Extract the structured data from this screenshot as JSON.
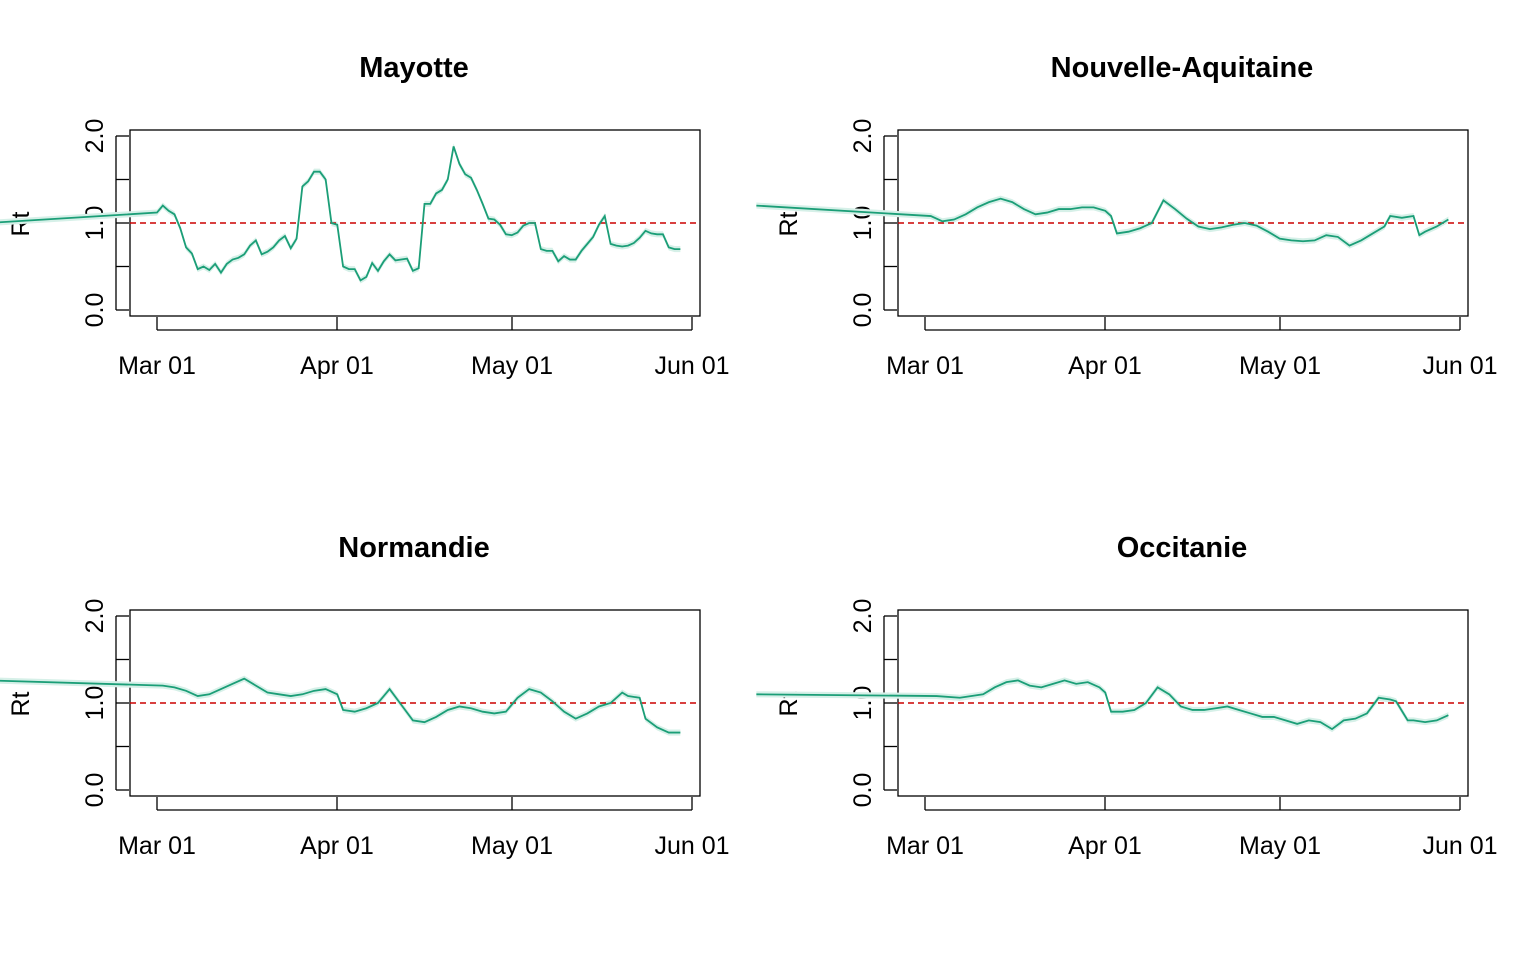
{
  "chart_data": [
    {
      "type": "line",
      "title": "Mayotte",
      "xlabel": "",
      "ylabel": "Rt",
      "ylim": [
        0,
        2
      ],
      "yticks": [
        "0.0",
        "1.0",
        "2.0"
      ],
      "xticks": [
        "Mar 01",
        "Apr 01",
        "May 01",
        "Jun 01"
      ],
      "reference_line": {
        "y": 1.0,
        "color": "#cc0000",
        "style": "dashed"
      },
      "series_color": "#1b9e77",
      "band_color": "#d6f0e8",
      "series": [
        {
          "x": [
            "02-28",
            "03-01",
            "03-02",
            "03-03",
            "03-04",
            "03-05",
            "03-06",
            "03-07",
            "03-08",
            "03-09",
            "03-10",
            "03-11",
            "03-12",
            "03-13",
            "03-14",
            "03-15",
            "03-16",
            "03-17",
            "03-18",
            "03-19",
            "03-20",
            "03-21",
            "03-22",
            "03-23",
            "03-24",
            "03-25",
            "03-26",
            "03-27",
            "03-28",
            "03-29",
            "03-30",
            "03-31",
            "04-01",
            "04-02",
            "04-03",
            "04-04",
            "04-05",
            "04-06",
            "04-07",
            "04-08",
            "04-09",
            "04-10",
            "04-11",
            "04-12",
            "04-13",
            "04-14",
            "04-15",
            "04-16",
            "04-17",
            "04-18",
            "04-19",
            "04-20",
            "04-21",
            "04-22",
            "04-23",
            "04-24",
            "04-25",
            "04-26",
            "04-27",
            "04-28",
            "04-29",
            "04-30",
            "05-01",
            "05-02",
            "05-03",
            "05-04",
            "05-05",
            "05-06",
            "05-07",
            "05-08",
            "05-09",
            "05-10",
            "05-11",
            "05-12",
            "05-13",
            "05-14",
            "05-15",
            "05-16",
            "05-17",
            "05-18",
            "05-19",
            "05-20",
            "05-21",
            "05-22",
            "05-23",
            "05-24",
            "05-25",
            "05-26",
            "05-27",
            "05-28",
            "05-29",
            "05-30"
          ],
          "y": [
            1.0,
            1.12,
            1.2,
            1.14,
            1.1,
            0.94,
            0.72,
            0.65,
            0.47,
            0.5,
            0.46,
            0.53,
            0.43,
            0.53,
            0.58,
            0.6,
            0.64,
            0.74,
            0.8,
            0.64,
            0.67,
            0.72,
            0.8,
            0.85,
            0.71,
            0.82,
            1.42,
            1.48,
            1.59,
            1.59,
            1.5,
            1.0,
            0.98,
            0.5,
            0.47,
            0.47,
            0.34,
            0.38,
            0.54,
            0.45,
            0.56,
            0.64,
            0.57,
            0.58,
            0.59,
            0.45,
            0.48,
            1.22,
            1.22,
            1.34,
            1.38,
            1.5,
            1.88,
            1.68,
            1.56,
            1.52,
            1.38,
            1.22,
            1.05,
            1.04,
            0.98,
            0.87,
            0.86,
            0.89,
            0.97,
            1.0,
            1.0,
            0.7,
            0.68,
            0.68,
            0.56,
            0.62,
            0.58,
            0.58,
            0.68,
            0.76,
            0.84,
            0.98,
            1.08,
            0.76,
            0.74,
            0.73,
            0.74,
            0.77,
            0.83,
            0.91,
            0.88,
            0.87,
            0.87,
            0.72,
            0.7,
            0.7
          ]
        }
      ]
    },
    {
      "type": "line",
      "title": "Nouvelle-Aquitaine",
      "xlabel": "",
      "ylabel": "Rt",
      "ylim": [
        0,
        2
      ],
      "yticks": [
        "0.0",
        "1.0",
        "2.0"
      ],
      "xticks": [
        "Mar 01",
        "Apr 01",
        "May 01",
        "Jun 01"
      ],
      "reference_line": {
        "y": 1.0,
        "color": "#cc0000",
        "style": "dashed"
      },
      "series_color": "#1b9e77",
      "band_color": "#d6f0e8",
      "series": [
        {
          "x": [
            "02-28",
            "03-02",
            "03-04",
            "03-06",
            "03-08",
            "03-10",
            "03-12",
            "03-14",
            "03-16",
            "03-18",
            "03-20",
            "03-22",
            "03-24",
            "03-26",
            "03-28",
            "03-30",
            "04-01",
            "04-02",
            "04-03",
            "04-05",
            "04-07",
            "04-09",
            "04-11",
            "04-13",
            "04-15",
            "04-17",
            "04-19",
            "04-21",
            "04-23",
            "04-25",
            "04-27",
            "04-29",
            "05-01",
            "05-03",
            "05-05",
            "05-07",
            "05-09",
            "05-11",
            "05-13",
            "05-15",
            "05-17",
            "05-19",
            "05-20",
            "05-22",
            "05-24",
            "05-25",
            "05-26",
            "05-28",
            "05-30"
          ],
          "y": [
            1.2,
            1.08,
            1.02,
            1.04,
            1.1,
            1.18,
            1.24,
            1.28,
            1.24,
            1.16,
            1.1,
            1.12,
            1.16,
            1.16,
            1.18,
            1.18,
            1.14,
            1.08,
            0.88,
            0.9,
            0.94,
            1.0,
            1.26,
            1.16,
            1.05,
            0.96,
            0.93,
            0.95,
            0.98,
            1.0,
            0.97,
            0.9,
            0.82,
            0.8,
            0.79,
            0.8,
            0.86,
            0.84,
            0.74,
            0.8,
            0.88,
            0.96,
            1.08,
            1.06,
            1.08,
            0.86,
            0.9,
            0.96,
            1.04
          ]
        }
      ]
    },
    {
      "type": "line",
      "title": "Normandie",
      "xlabel": "",
      "ylabel": "Rt",
      "ylim": [
        0,
        2
      ],
      "yticks": [
        "0.0",
        "1.0",
        "2.0"
      ],
      "xticks": [
        "Mar 01",
        "Apr 01",
        "May 01",
        "Jun 01"
      ],
      "reference_line": {
        "y": 1.0,
        "color": "#cc0000",
        "style": "dashed"
      },
      "series_color": "#1b9e77",
      "band_color": "#d6f0e8",
      "series": [
        {
          "x": [
            "02-28",
            "03-02",
            "03-04",
            "03-06",
            "03-08",
            "03-10",
            "03-12",
            "03-14",
            "03-16",
            "03-18",
            "03-20",
            "03-22",
            "03-24",
            "03-26",
            "03-28",
            "03-30",
            "04-01",
            "04-02",
            "04-04",
            "04-06",
            "04-08",
            "04-10",
            "04-12",
            "04-14",
            "04-16",
            "04-18",
            "04-20",
            "04-22",
            "04-24",
            "04-26",
            "04-28",
            "04-30",
            "05-02",
            "05-04",
            "05-06",
            "05-08",
            "05-10",
            "05-12",
            "05-14",
            "05-16",
            "05-18",
            "05-20",
            "05-21",
            "05-23",
            "05-24",
            "05-26",
            "05-28",
            "05-30"
          ],
          "y": [
            1.26,
            1.2,
            1.18,
            1.14,
            1.08,
            1.1,
            1.16,
            1.22,
            1.28,
            1.2,
            1.12,
            1.1,
            1.08,
            1.1,
            1.14,
            1.16,
            1.1,
            0.92,
            0.9,
            0.94,
            1.0,
            1.16,
            0.98,
            0.8,
            0.78,
            0.84,
            0.92,
            0.96,
            0.94,
            0.9,
            0.88,
            0.9,
            1.06,
            1.16,
            1.12,
            1.02,
            0.9,
            0.82,
            0.88,
            0.96,
            1.0,
            1.12,
            1.08,
            1.06,
            0.82,
            0.72,
            0.66,
            0.66
          ]
        }
      ]
    },
    {
      "type": "line",
      "title": "Occitanie",
      "xlabel": "",
      "ylabel": "Rt",
      "ylim": [
        0,
        2
      ],
      "yticks": [
        "0.0",
        "1.0",
        "2.0"
      ],
      "xticks": [
        "Mar 01",
        "Apr 01",
        "May 01",
        "Jun 01"
      ],
      "reference_line": {
        "y": 1.0,
        "color": "#cc0000",
        "style": "dashed"
      },
      "series_color": "#1b9e77",
      "band_color": "#d6f0e8",
      "series": [
        {
          "x": [
            "02-28",
            "03-03",
            "03-07",
            "03-11",
            "03-13",
            "03-15",
            "03-17",
            "03-19",
            "03-21",
            "03-23",
            "03-25",
            "03-27",
            "03-29",
            "03-31",
            "04-01",
            "04-02",
            "04-04",
            "04-06",
            "04-08",
            "04-10",
            "04-12",
            "04-14",
            "04-16",
            "04-18",
            "04-20",
            "04-22",
            "04-24",
            "04-26",
            "04-28",
            "04-30",
            "05-02",
            "05-04",
            "05-06",
            "05-08",
            "05-10",
            "05-12",
            "05-14",
            "05-16",
            "05-18",
            "05-20",
            "05-21",
            "05-23",
            "05-24",
            "05-26",
            "05-28",
            "05-30"
          ],
          "y": [
            1.1,
            1.08,
            1.06,
            1.1,
            1.18,
            1.24,
            1.26,
            1.2,
            1.18,
            1.22,
            1.26,
            1.22,
            1.24,
            1.18,
            1.12,
            0.9,
            0.9,
            0.92,
            1.0,
            1.18,
            1.1,
            0.96,
            0.92,
            0.92,
            0.94,
            0.96,
            0.92,
            0.88,
            0.84,
            0.84,
            0.8,
            0.76,
            0.8,
            0.78,
            0.7,
            0.8,
            0.82,
            0.88,
            1.06,
            1.04,
            1.02,
            0.8,
            0.8,
            0.78,
            0.8,
            0.86
          ]
        }
      ]
    }
  ]
}
